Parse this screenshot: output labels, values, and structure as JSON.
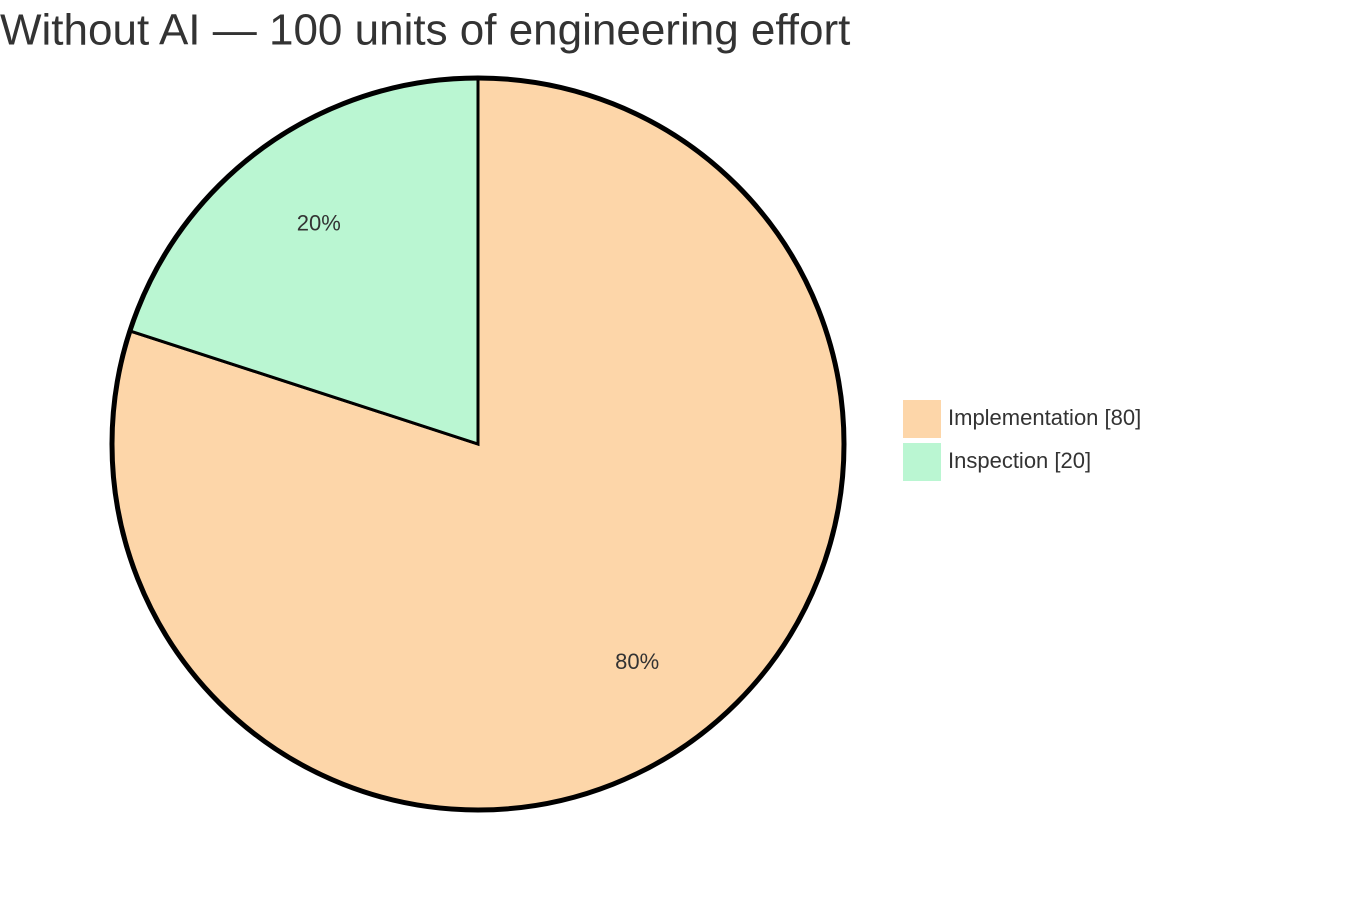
{
  "chart_data": {
    "type": "pie",
    "title": "Without AI — 100 units of engineering effort",
    "categories": [
      "Implementation [80]",
      "Inspection [20]"
    ],
    "values": [
      80,
      20
    ],
    "value_labels": [
      "80%",
      "20%"
    ],
    "colors": [
      "#fdd6a9",
      "#baf6d2"
    ],
    "legend_position": "right"
  }
}
